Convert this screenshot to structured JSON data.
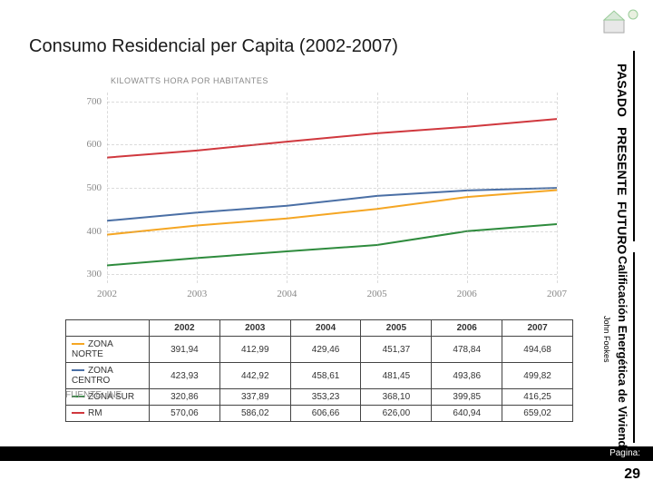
{
  "title": "Consumo Residencial per Capita (2002-2007)",
  "axis_label": "KILOWATTS HORA POR HABITANTES",
  "sidebar": {
    "pasado": "PASADO",
    "presente": "PRESENTE",
    "futuro": "FUTURO",
    "calificacion": "Calificación Energética de Viviendas",
    "author": "John Fookes"
  },
  "footer": {
    "pagina_label": "Pagina:",
    "page": "29",
    "fuente": "FUENTE: INE"
  },
  "chart": {
    "type": "line",
    "years": [
      2002,
      2003,
      2004,
      2005,
      2006,
      2007
    ],
    "ylim": [
      280,
      720
    ],
    "yticks": [
      300,
      400,
      500,
      600,
      700
    ],
    "xgrid_at": [
      2002,
      2003,
      2004,
      2005,
      2006,
      2007
    ],
    "line_width": 2,
    "background_color": "#ffffff",
    "grid_color": "#cccccc",
    "series": [
      {
        "name": "ZONA NORTE",
        "color": "#f5a623",
        "values": [
          391.94,
          412.99,
          429.46,
          451.37,
          478.84,
          494.68
        ]
      },
      {
        "name": "ZONA CENTRO",
        "color": "#4a6fa5",
        "values": [
          423.93,
          442.92,
          458.61,
          481.45,
          493.86,
          499.82
        ]
      },
      {
        "name": "ZONA SUR",
        "color": "#2e8b3d",
        "values": [
          320.86,
          337.89,
          353.23,
          368.1,
          399.85,
          416.25
        ]
      },
      {
        "name": "RM",
        "color": "#d0383e",
        "values": [
          570.06,
          586.02,
          606.66,
          626.0,
          640.94,
          659.02
        ]
      }
    ]
  }
}
